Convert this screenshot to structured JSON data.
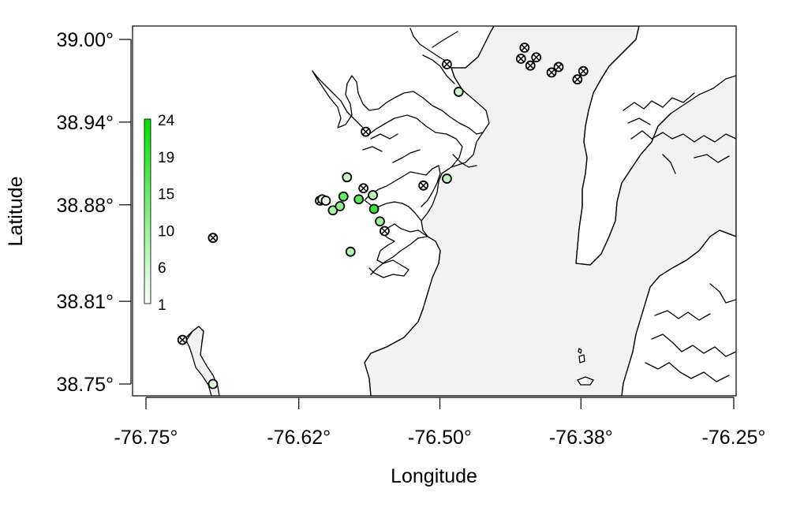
{
  "chart_data": {
    "type": "scatter",
    "xlabel": "Longitude",
    "ylabel": "Latitude",
    "xlim": [
      -76.76,
      -76.245
    ],
    "ylim": [
      38.74,
      39.01
    ],
    "x_ticks": [
      -76.75,
      -76.62,
      -76.5,
      -76.38,
      -76.25
    ],
    "x_tick_labels": [
      "-76.75°",
      "-76.62°",
      "-76.50°",
      "-76.38°",
      "-76.25°"
    ],
    "y_ticks": [
      38.75,
      38.81,
      38.88,
      38.94,
      39.0
    ],
    "y_tick_labels": [
      "38.75°",
      "38.81°",
      "38.88°",
      "38.94°",
      "39.00°"
    ],
    "grid": false,
    "legend": {
      "type": "colorbar",
      "placement": "left-inside",
      "labels": [
        "24",
        "19",
        "15",
        "10",
        "6",
        "1"
      ],
      "range": [
        1,
        24
      ],
      "low_color": "#ffffff",
      "high_color": "#00e000"
    },
    "colors": {
      "water": "#f2f2f2",
      "land": "#ffffff",
      "detect_low": "#ffffff",
      "detect_high": "#00e000",
      "no_detect_marker": "#000000"
    },
    "points_detected": [
      {
        "lon": -76.6,
        "lat": 38.884,
        "value": 4
      },
      {
        "lon": -76.597,
        "lat": 38.883,
        "value": 3
      },
      {
        "lon": -76.591,
        "lat": 38.876,
        "value": 9
      },
      {
        "lon": -76.585,
        "lat": 38.879,
        "value": 11
      },
      {
        "lon": -76.582,
        "lat": 38.886,
        "value": 15
      },
      {
        "lon": -76.579,
        "lat": 38.9,
        "value": 6
      },
      {
        "lon": -76.569,
        "lat": 38.884,
        "value": 16
      },
      {
        "lon": -76.557,
        "lat": 38.887,
        "value": 7
      },
      {
        "lon": -76.556,
        "lat": 38.877,
        "value": 19
      },
      {
        "lon": -76.551,
        "lat": 38.868,
        "value": 10
      },
      {
        "lon": -76.576,
        "lat": 38.846,
        "value": 8
      },
      {
        "lon": -76.494,
        "lat": 38.899,
        "value": 7
      },
      {
        "lon": -76.484,
        "lat": 38.962,
        "value": 6
      },
      {
        "lon": -76.693,
        "lat": 38.75,
        "value": 4
      }
    ],
    "points_not_detected": [
      {
        "lon": -76.602,
        "lat": 38.883
      },
      {
        "lon": -76.565,
        "lat": 38.892
      },
      {
        "lon": -76.547,
        "lat": 38.861
      },
      {
        "lon": -76.563,
        "lat": 38.933
      },
      {
        "lon": -76.514,
        "lat": 38.894
      },
      {
        "lon": -76.494,
        "lat": 38.982
      },
      {
        "lon": -76.693,
        "lat": 38.856
      },
      {
        "lon": -76.719,
        "lat": 38.782
      },
      {
        "lon": -76.431,
        "lat": 38.986
      },
      {
        "lon": -76.428,
        "lat": 38.994
      },
      {
        "lon": -76.423,
        "lat": 38.981
      },
      {
        "lon": -76.418,
        "lat": 38.987
      },
      {
        "lon": -76.405,
        "lat": 38.976
      },
      {
        "lon": -76.399,
        "lat": 38.98
      },
      {
        "lon": -76.383,
        "lat": 38.971
      },
      {
        "lon": -76.378,
        "lat": 38.977
      }
    ]
  }
}
